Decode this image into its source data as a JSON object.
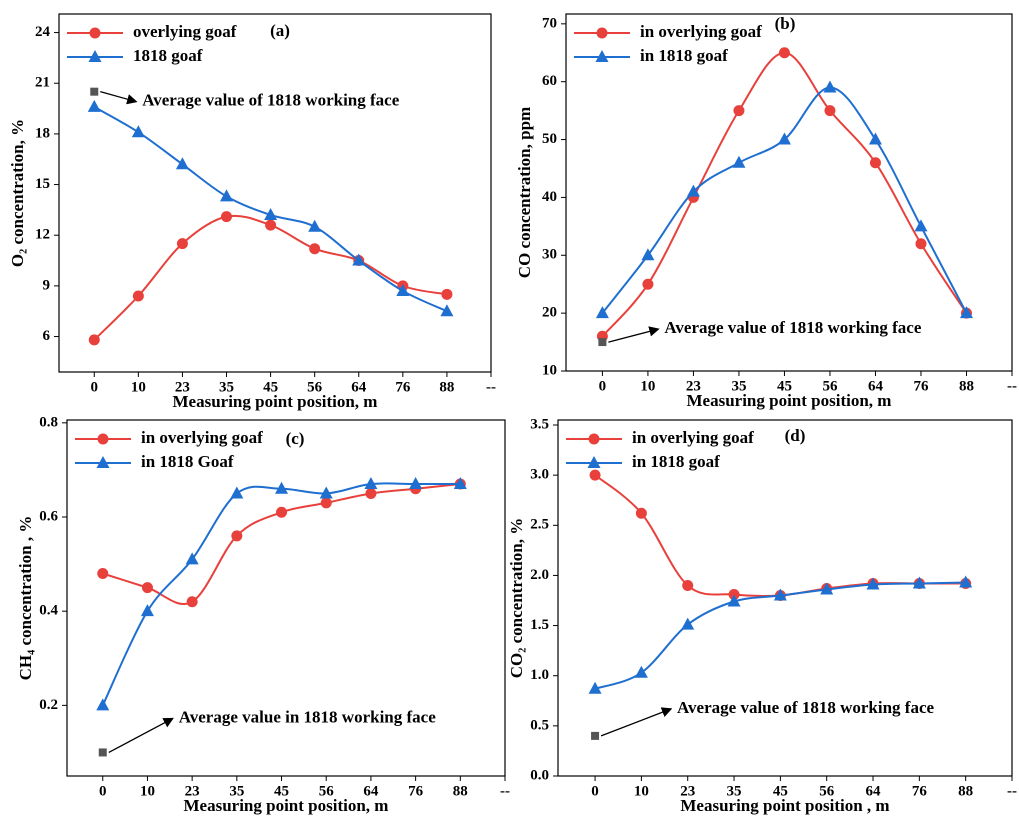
{
  "chart_data": [
    {
      "type": "line",
      "label": "(a)",
      "xlabel": "Measuring point position, m",
      "ylabel": "O₂ concentration, %",
      "categories": [
        "0",
        "10",
        "23",
        "35",
        "45",
        "56",
        "64",
        "76",
        "88",
        "--"
      ],
      "series": [
        {
          "name": "overlying goaf",
          "color": "#e8413c",
          "marker": "circle",
          "values": [
            5.8,
            8.4,
            11.5,
            13.1,
            12.6,
            11.2,
            10.5,
            9.0,
            8.5,
            null
          ]
        },
        {
          "name": "1818 goaf",
          "color": "#1f6fd1",
          "marker": "triangle",
          "values": [
            19.6,
            18.1,
            16.2,
            14.3,
            13.2,
            12.5,
            10.5,
            8.7,
            7.5,
            null
          ]
        }
      ],
      "annotation": {
        "text": "Average value of 1818 working face",
        "value": 20.5
      },
      "ylim": [
        3.9,
        25.1
      ],
      "yticks": [
        6,
        9,
        12,
        15,
        18,
        21,
        24
      ]
    },
    {
      "type": "line",
      "label": "(b)",
      "xlabel": "Measuring point position, m",
      "ylabel": "CO concentration, ppm",
      "categories": [
        "0",
        "10",
        "23",
        "35",
        "45",
        "56",
        "64",
        "76",
        "88",
        "--"
      ],
      "series": [
        {
          "name": "in overlying goaf",
          "color": "#e8413c",
          "marker": "circle",
          "values": [
            16,
            25,
            40,
            55,
            65,
            55,
            46,
            32,
            20,
            null
          ]
        },
        {
          "name": "in 1818 goaf",
          "color": "#1f6fd1",
          "marker": "triangle",
          "values": [
            20,
            30,
            41,
            46,
            50,
            59,
            50,
            35,
            20,
            null
          ]
        }
      ],
      "annotation": {
        "text": "Average value of 1818 working face",
        "value": 15
      },
      "ylim": [
        10,
        71.7
      ],
      "yticks": [
        10,
        20,
        30,
        40,
        50,
        60,
        70
      ]
    },
    {
      "type": "line",
      "label": "(c)",
      "xlabel": "Measuring point position, m",
      "ylabel": "CH₄ concentration , %",
      "categories": [
        "0",
        "10",
        "23",
        "35",
        "45",
        "56",
        "64",
        "76",
        "88",
        "--"
      ],
      "series": [
        {
          "name": "in overlying goaf",
          "color": "#e8413c",
          "marker": "circle",
          "values": [
            0.48,
            0.45,
            0.42,
            0.56,
            0.61,
            0.63,
            0.65,
            0.66,
            0.67,
            null
          ]
        },
        {
          "name": "in 1818 Goaf",
          "color": "#1f6fd1",
          "marker": "triangle",
          "values": [
            0.2,
            0.4,
            0.51,
            0.65,
            0.66,
            0.65,
            0.67,
            0.67,
            0.67,
            null
          ]
        }
      ],
      "annotation": {
        "text": "Average value  in 1818 working face",
        "value": 0.1
      },
      "ylim": [
        0.05,
        0.806
      ],
      "yticks": [
        0.2,
        0.4,
        0.6,
        0.8
      ]
    },
    {
      "type": "line",
      "label": "(d)",
      "xlabel": "Measuring point position , m",
      "ylabel": "CO₂ concentration, %",
      "categories": [
        "0",
        "10",
        "23",
        "35",
        "45",
        "56",
        "64",
        "76",
        "88",
        "--"
      ],
      "series": [
        {
          "name": "in overlying goaf",
          "color": "#e8413c",
          "marker": "circle",
          "values": [
            3.0,
            2.62,
            1.9,
            1.81,
            1.8,
            1.87,
            1.92,
            1.92,
            1.92,
            null
          ]
        },
        {
          "name": "in 1818 goaf",
          "color": "#1f6fd1",
          "marker": "triangle",
          "values": [
            0.87,
            1.03,
            1.51,
            1.74,
            1.8,
            1.86,
            1.91,
            1.92,
            1.93,
            null
          ]
        }
      ],
      "annotation": {
        "text": "Average value of 1818 working face",
        "value": 0.4
      },
      "ylim": [
        0,
        3.55
      ],
      "yticks": [
        {
          "value": 0,
          "label": "0.0"
        },
        0.5,
        {
          "value": 1,
          "label": "1.0"
        },
        1.5,
        {
          "value": 2,
          "label": "2.0"
        },
        2.5,
        {
          "value": 3,
          "label": "3.0"
        },
        3.5
      ]
    }
  ]
}
